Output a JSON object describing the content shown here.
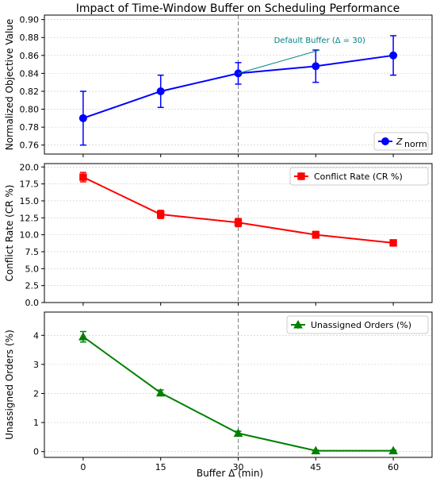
{
  "chart_data": {
    "type": "line",
    "title": "Impact of Time-Window Buffer on Scheduling Performance",
    "xlabel": "Buffer Δ (min)",
    "x": [
      0,
      15,
      30,
      45,
      60
    ],
    "x_ticks": [
      "0",
      "15",
      "30",
      "45",
      "60"
    ],
    "xlim": [
      -7.5,
      67.5
    ],
    "reference_line_x": 30,
    "panels": [
      {
        "ylabel": "Normalized Objective Value",
        "ylim": [
          0.75,
          0.905
        ],
        "y_ticks": [
          "0.76",
          "0.78",
          "0.80",
          "0.82",
          "0.84",
          "0.86",
          "0.88",
          "0.90"
        ],
        "y_tick_values": [
          0.76,
          0.78,
          0.8,
          0.82,
          0.84,
          0.86,
          0.88,
          0.9
        ],
        "grid": "y",
        "legend_position": "lower-right",
        "series": [
          {
            "name": "Z_norm",
            "legend_main": "Z",
            "legend_sub": "norm",
            "color": "#0000ff",
            "marker": "circle",
            "values": [
              0.79,
              0.82,
              0.84,
              0.848,
              0.86
            ],
            "errors": [
              0.03,
              0.018,
              0.012,
              0.018,
              0.022
            ]
          }
        ],
        "annotation": {
          "text": "Default Buffer (Δ = 30)",
          "color": "#008080",
          "point": [
            30,
            0.84
          ],
          "text_anchor": [
            45,
            0.866
          ]
        }
      },
      {
        "ylabel": "Conflict Rate (CR %)",
        "ylim": [
          0,
          20.5
        ],
        "y_ticks": [
          "0.0",
          "2.5",
          "5.0",
          "7.5",
          "10.0",
          "12.5",
          "15.0",
          "17.5",
          "20.0"
        ],
        "y_tick_values": [
          0,
          2.5,
          5,
          7.5,
          10,
          12.5,
          15,
          17.5,
          20
        ],
        "grid": "y",
        "legend_position": "top-right",
        "series": [
          {
            "name": "Conflict Rate (CR %)",
            "color": "#ff0000",
            "marker": "square",
            "values": [
              18.5,
              13.0,
              11.8,
              10.0,
              8.8
            ],
            "errors": [
              0.7,
              0.6,
              0.6,
              0.5,
              0.4
            ]
          }
        ]
      },
      {
        "ylabel": "Unassigned Orders (%)",
        "ylim": [
          -0.2,
          4.8
        ],
        "y_ticks": [
          "0",
          "1",
          "2",
          "3",
          "4"
        ],
        "y_tick_values": [
          0,
          1,
          2,
          3,
          4
        ],
        "grid": "y",
        "legend_position": "top-right",
        "series": [
          {
            "name": "Unassigned Orders (%)",
            "color": "#008000",
            "marker": "triangle",
            "values": [
              3.95,
              2.02,
              0.63,
              0.03,
              0.03
            ],
            "errors": [
              0.18,
              0.1,
              0.07,
              0.02,
              0.02
            ]
          }
        ]
      }
    ]
  }
}
